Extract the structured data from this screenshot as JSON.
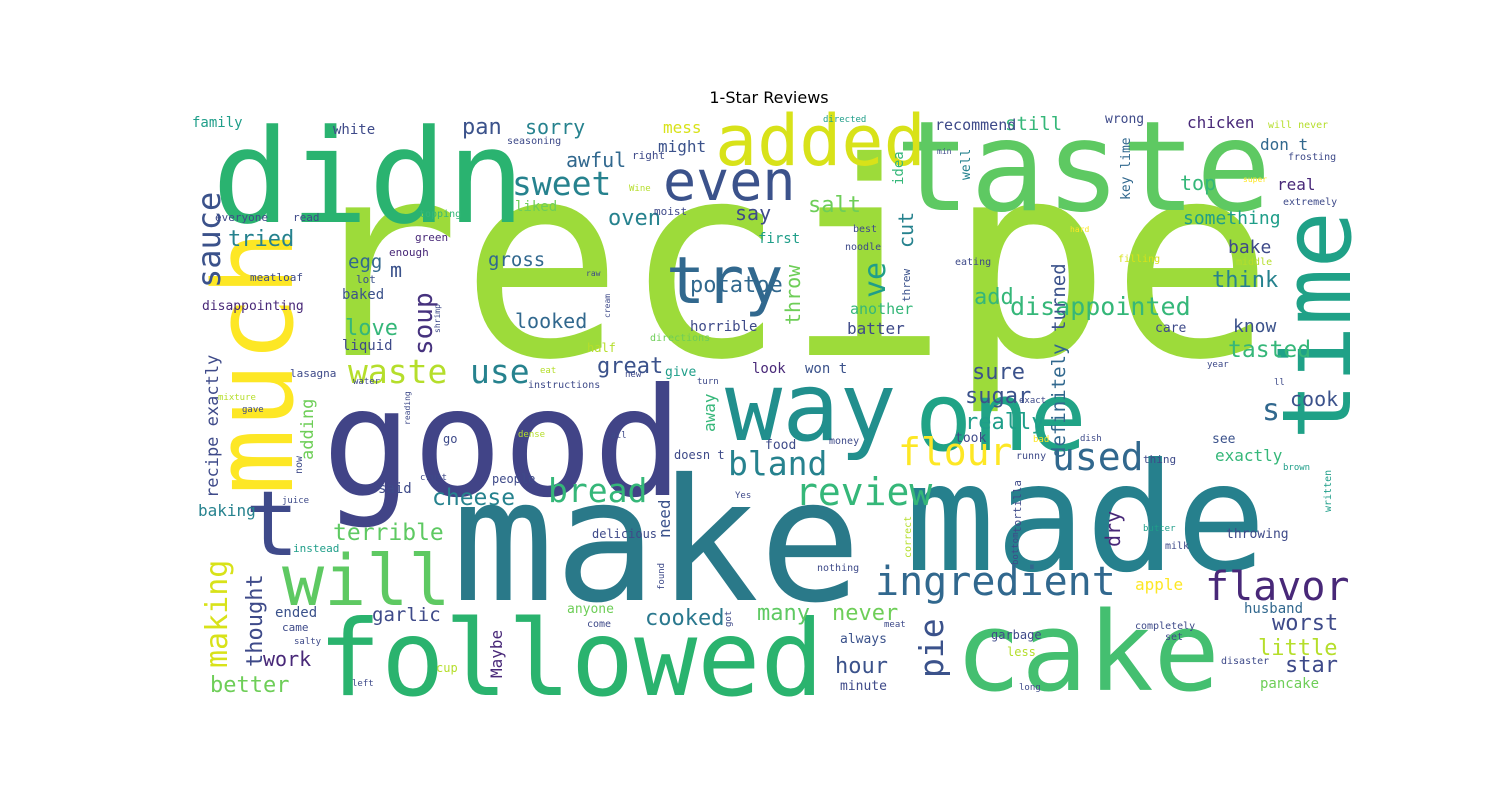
{
  "chart_data": {
    "type": "wordcloud",
    "title": "1-Star Reviews",
    "colormap": "viridis",
    "background": "#ffffff",
    "words": [
      {
        "text": "recipe",
        "weight": 1.0,
        "color": "#9ddb3a"
      },
      {
        "text": "make",
        "weight": 0.62,
        "color": "#2a7989"
      },
      {
        "text": "made",
        "weight": 0.55,
        "color": "#26808d"
      },
      {
        "text": "good",
        "weight": 0.52,
        "color": "#414487"
      },
      {
        "text": "didn",
        "weight": 0.5,
        "color": "#2ab370"
      },
      {
        "text": "taste",
        "weight": 0.48,
        "color": "#5ec962"
      },
      {
        "text": "cake",
        "weight": 0.42,
        "color": "#44bf70"
      },
      {
        "text": "followed",
        "weight": 0.4,
        "color": "#2ab36e"
      },
      {
        "text": "much",
        "weight": 0.38,
        "color": "#fde725"
      },
      {
        "text": "one",
        "weight": 0.37,
        "color": "#20a386"
      },
      {
        "text": "way",
        "weight": 0.35,
        "color": "#218f8d"
      },
      {
        "text": "time",
        "weight": 0.34,
        "color": "#1fa187"
      },
      {
        "text": "t",
        "weight": 0.3,
        "color": "#3f4a8a"
      },
      {
        "text": "will",
        "weight": 0.25,
        "color": "#5ec962"
      },
      {
        "text": "added",
        "weight": 0.24,
        "color": "#d8e219"
      },
      {
        "text": "even",
        "weight": 0.22,
        "color": "#3b528b"
      },
      {
        "text": "try",
        "weight": 0.2,
        "color": "#31688e"
      },
      {
        "text": "ingredient",
        "weight": 0.15,
        "color": "#31688e"
      },
      {
        "text": "flavor",
        "weight": 0.14,
        "color": "#482878"
      },
      {
        "text": "review",
        "weight": 0.13,
        "color": "#35b779"
      },
      {
        "text": "flour",
        "weight": 0.13,
        "color": "#fde725"
      },
      {
        "text": "used",
        "weight": 0.12,
        "color": "#31688e"
      },
      {
        "text": "bland",
        "weight": 0.12,
        "color": "#26828e"
      },
      {
        "text": "bread",
        "weight": 0.12,
        "color": "#35b779"
      },
      {
        "text": "sweet",
        "weight": 0.12,
        "color": "#26828e"
      },
      {
        "text": "waste",
        "weight": 0.12,
        "color": "#b5de2b"
      },
      {
        "text": "use",
        "weight": 0.11,
        "color": "#26828e"
      },
      {
        "text": "sauce",
        "weight": 0.11,
        "color": "#3b528b"
      },
      {
        "text": "making",
        "weight": 0.1,
        "color": "#d8e219"
      },
      {
        "text": "pie",
        "weight": 0.1,
        "color": "#3b528b"
      },
      {
        "text": "s",
        "weight": 0.1,
        "color": "#31688e"
      },
      {
        "text": "disappointed",
        "weight": 0.09,
        "color": "#35b779"
      },
      {
        "text": "ve",
        "weight": 0.09,
        "color": "#1f9e89"
      },
      {
        "text": "cheese",
        "weight": 0.08,
        "color": "#26828e"
      },
      {
        "text": "tasted",
        "weight": 0.08,
        "color": "#35b779"
      },
      {
        "text": "soup",
        "weight": 0.08,
        "color": "#46327e"
      },
      {
        "text": "potatoe",
        "weight": 0.08,
        "color": "#31688e"
      },
      {
        "text": "cooked",
        "weight": 0.08,
        "color": "#2a788e"
      },
      {
        "text": "worst",
        "weight": 0.07,
        "color": "#3e4a89"
      },
      {
        "text": "terrible",
        "weight": 0.07,
        "color": "#5ec962"
      },
      {
        "text": "salt",
        "weight": 0.07,
        "color": "#6ece58"
      },
      {
        "text": "little",
        "weight": 0.07,
        "color": "#b5de2b"
      },
      {
        "text": "love",
        "weight": 0.07,
        "color": "#35b779"
      },
      {
        "text": "great",
        "weight": 0.07,
        "color": "#3b528b"
      },
      {
        "text": "many",
        "weight": 0.07,
        "color": "#5ec962"
      },
      {
        "text": "never",
        "weight": 0.07,
        "color": "#6ece58"
      },
      {
        "text": "star",
        "weight": 0.07,
        "color": "#3e4a89"
      },
      {
        "text": "hour",
        "weight": 0.07,
        "color": "#3b528b"
      },
      {
        "text": "tried",
        "weight": 0.07,
        "color": "#26828e"
      },
      {
        "text": "sure",
        "weight": 0.07,
        "color": "#3b528b"
      },
      {
        "text": "better",
        "weight": 0.07,
        "color": "#6ece58"
      },
      {
        "text": "add",
        "weight": 0.07,
        "color": "#35b779"
      },
      {
        "text": "think",
        "weight": 0.07,
        "color": "#26828e"
      },
      {
        "text": "really",
        "weight": 0.07,
        "color": "#1f9e89"
      },
      {
        "text": "sugar",
        "weight": 0.07,
        "color": "#3b528b"
      },
      {
        "text": "thought",
        "weight": 0.07,
        "color": "#3e4a89"
      },
      {
        "text": "oven",
        "weight": 0.07,
        "color": "#26828e"
      },
      {
        "text": "definitely",
        "weight": 0.06,
        "color": "#31688e"
      },
      {
        "text": "turned",
        "weight": 0.06,
        "color": "#3b528b"
      },
      {
        "text": "looked",
        "weight": 0.06,
        "color": "#31688e"
      },
      {
        "text": "dry",
        "weight": 0.06,
        "color": "#482878"
      },
      {
        "text": "pan",
        "weight": 0.06,
        "color": "#3b528b"
      },
      {
        "text": "awful",
        "weight": 0.06,
        "color": "#31688e"
      },
      {
        "text": "sorry",
        "weight": 0.06,
        "color": "#26828e"
      },
      {
        "text": "say",
        "weight": 0.06,
        "color": "#3e4a89"
      },
      {
        "text": "cut",
        "weight": 0.06,
        "color": "#26828e"
      },
      {
        "text": "throw",
        "weight": 0.06,
        "color": "#6ece58"
      },
      {
        "text": "cook",
        "weight": 0.06,
        "color": "#3b528b"
      },
      {
        "text": "top",
        "weight": 0.06,
        "color": "#35b779"
      },
      {
        "text": "work",
        "weight": 0.06,
        "color": "#482878"
      },
      {
        "text": "garlic",
        "weight": 0.06,
        "color": "#3e4a89"
      },
      {
        "text": "gross",
        "weight": 0.06,
        "color": "#31688e"
      },
      {
        "text": "egg",
        "weight": 0.06,
        "color": "#31688e"
      },
      {
        "text": "m",
        "weight": 0.06,
        "color": "#3b528b"
      },
      {
        "text": "something",
        "weight": 0.06,
        "color": "#1f9e89"
      },
      {
        "text": "bake",
        "weight": 0.06,
        "color": "#3e4a89"
      },
      {
        "text": "know",
        "weight": 0.06,
        "color": "#3b528b"
      },
      {
        "text": "still",
        "weight": 0.06,
        "color": "#35b779"
      },
      {
        "text": "real",
        "weight": 0.05,
        "color": "#482878"
      },
      {
        "text": "don t",
        "weight": 0.05,
        "color": "#31688e"
      },
      {
        "text": "mess",
        "weight": 0.05,
        "color": "#d8e219"
      },
      {
        "text": "might",
        "weight": 0.05,
        "color": "#3b528b"
      },
      {
        "text": "recommend",
        "weight": 0.05,
        "color": "#3e4a89"
      },
      {
        "text": "chicken",
        "weight": 0.05,
        "color": "#482878"
      },
      {
        "text": "adding",
        "weight": 0.05,
        "color": "#6ece58"
      },
      {
        "text": "recipe exactly",
        "weight": 0.05,
        "color": "#3e4a89"
      },
      {
        "text": "apple",
        "weight": 0.05,
        "color": "#fde725"
      },
      {
        "text": "exactly",
        "weight": 0.05,
        "color": "#35b779"
      },
      {
        "text": "another",
        "weight": 0.05,
        "color": "#35b779"
      },
      {
        "text": "batter",
        "weight": 0.05,
        "color": "#3e4a89"
      },
      {
        "text": "need",
        "weight": 0.05,
        "color": "#3b528b"
      },
      {
        "text": "away",
        "weight": 0.05,
        "color": "#35b779"
      },
      {
        "text": "Maybe",
        "weight": 0.05,
        "color": "#482878"
      },
      {
        "text": "baking",
        "weight": 0.05,
        "color": "#26828e"
      },
      {
        "text": "ended",
        "weight": 0.04,
        "color": "#3b528b"
      },
      {
        "text": "husband",
        "weight": 0.04,
        "color": "#31688e"
      },
      {
        "text": "pancake",
        "weight": 0.04,
        "color": "#6ece58"
      },
      {
        "text": "said",
        "weight": 0.04,
        "color": "#3e4a89"
      },
      {
        "text": "family",
        "weight": 0.04,
        "color": "#1f9e89"
      },
      {
        "text": "white",
        "weight": 0.04,
        "color": "#3e4a89"
      },
      {
        "text": "liked",
        "weight": 0.04,
        "color": "#6ece58"
      },
      {
        "text": "first",
        "weight": 0.04,
        "color": "#1f9e89"
      },
      {
        "text": "baked",
        "weight": 0.04,
        "color": "#3b528b"
      },
      {
        "text": "liquid",
        "weight": 0.04,
        "color": "#3e4a89"
      },
      {
        "text": "disappointing",
        "weight": 0.04,
        "color": "#482878"
      },
      {
        "text": "idea",
        "weight": 0.04,
        "color": "#35b779"
      },
      {
        "text": "well",
        "weight": 0.04,
        "color": "#26828e"
      },
      {
        "text": "wrong",
        "weight": 0.04,
        "color": "#3e4a89"
      },
      {
        "text": "key lime",
        "weight": 0.04,
        "color": "#31688e"
      },
      {
        "text": "care",
        "weight": 0.04,
        "color": "#3e4a89"
      },
      {
        "text": "horrible",
        "weight": 0.04,
        "color": "#3e4a89"
      },
      {
        "text": "look",
        "weight": 0.04,
        "color": "#482878"
      },
      {
        "text": "won t",
        "weight": 0.04,
        "color": "#3b528b"
      },
      {
        "text": "give",
        "weight": 0.04,
        "color": "#1f9e89"
      },
      {
        "text": "took",
        "weight": 0.04,
        "color": "#3e4a89"
      },
      {
        "text": "food",
        "weight": 0.04,
        "color": "#3e4a89"
      },
      {
        "text": "see",
        "weight": 0.04,
        "color": "#3b528b"
      },
      {
        "text": "throwing",
        "weight": 0.04,
        "color": "#3e4a89"
      },
      {
        "text": "always",
        "weight": 0.04,
        "color": "#3b528b"
      },
      {
        "text": "minute",
        "weight": 0.04,
        "color": "#3e4a89"
      },
      {
        "text": "anyone",
        "weight": 0.04,
        "color": "#6ece58"
      },
      {
        "text": "people",
        "weight": 0.04,
        "color": "#3e4a89"
      },
      {
        "text": "delicious",
        "weight": 0.04,
        "color": "#3e4a89"
      },
      {
        "text": "doesn t",
        "weight": 0.04,
        "color": "#3e4a89"
      },
      {
        "text": "half",
        "weight": 0.04,
        "color": "#b5de2b"
      },
      {
        "text": "garbage",
        "weight": 0.04,
        "color": "#3e4a89"
      },
      {
        "text": "less",
        "weight": 0.03,
        "color": "#b5de2b"
      },
      {
        "text": "everyone",
        "weight": 0.03,
        "color": "#3e4a89"
      },
      {
        "text": "read",
        "weight": 0.03,
        "color": "#3e4a89"
      },
      {
        "text": "green",
        "weight": 0.03,
        "color": "#482878"
      },
      {
        "text": "enough",
        "weight": 0.03,
        "color": "#482878"
      },
      {
        "text": "meatloaf",
        "weight": 0.03,
        "color": "#3e4a89"
      },
      {
        "text": "lot",
        "weight": 0.03,
        "color": "#3b528b"
      },
      {
        "text": "topping",
        "weight": 0.03,
        "color": "#35b779"
      },
      {
        "text": "moist",
        "weight": 0.03,
        "color": "#3e4a89"
      },
      {
        "text": "right",
        "weight": 0.03,
        "color": "#3e4a89"
      },
      {
        "text": "seasoning",
        "weight": 0.03,
        "color": "#3e4a89"
      },
      {
        "text": "noodle",
        "weight": 0.03,
        "color": "#3e4a89"
      },
      {
        "text": "best",
        "weight": 0.03,
        "color": "#3e4a89"
      },
      {
        "text": "threw",
        "weight": 0.03,
        "color": "#3b528b"
      },
      {
        "text": "eating",
        "weight": 0.03,
        "color": "#3e4a89"
      },
      {
        "text": "filling",
        "weight": 0.03,
        "color": "#d8e219"
      },
      {
        "text": "middle",
        "weight": 0.03,
        "color": "#b5de2b"
      },
      {
        "text": "will never",
        "weight": 0.03,
        "color": "#b5de2b"
      },
      {
        "text": "frosting",
        "weight": 0.03,
        "color": "#3e4a89"
      },
      {
        "text": "extremely",
        "weight": 0.03,
        "color": "#3e4a89"
      },
      {
        "text": "directions",
        "weight": 0.03,
        "color": "#6ece58"
      },
      {
        "text": "instructions",
        "weight": 0.03,
        "color": "#3e4a89"
      },
      {
        "text": "lasagna",
        "weight": 0.03,
        "color": "#3e4a89"
      },
      {
        "text": "mixture",
        "weight": 0.03,
        "color": "#b5de2b"
      },
      {
        "text": "gave",
        "weight": 0.03,
        "color": "#3e4a89"
      },
      {
        "text": "water",
        "weight": 0.03,
        "color": "#3e4a89"
      },
      {
        "text": "juice",
        "weight": 0.03,
        "color": "#3e4a89"
      },
      {
        "text": "instead",
        "weight": 0.03,
        "color": "#1f9e89"
      },
      {
        "text": "salty",
        "weight": 0.03,
        "color": "#3e4a89"
      },
      {
        "text": "left",
        "weight": 0.03,
        "color": "#3e4a89"
      },
      {
        "text": "came",
        "weight": 0.03,
        "color": "#3e4a89"
      },
      {
        "text": "crust",
        "weight": 0.03,
        "color": "#3e4a89"
      },
      {
        "text": "now",
        "weight": 0.03,
        "color": "#3e4a89"
      },
      {
        "text": "go",
        "weight": 0.03,
        "color": "#3e4a89"
      },
      {
        "text": "dense",
        "weight": 0.03,
        "color": "#b5de2b"
      },
      {
        "text": "call",
        "weight": 0.03,
        "color": "#3e4a89"
      },
      {
        "text": "cup",
        "weight": 0.03,
        "color": "#b5de2b"
      },
      {
        "text": "found",
        "weight": 0.03,
        "color": "#3e4a89"
      },
      {
        "text": "nothing",
        "weight": 0.03,
        "color": "#3e4a89"
      },
      {
        "text": "got",
        "weight": 0.03,
        "color": "#3e4a89"
      },
      {
        "text": "come",
        "weight": 0.03,
        "color": "#3e4a89"
      },
      {
        "text": "meat",
        "weight": 0.03,
        "color": "#3e4a89"
      },
      {
        "text": "completely",
        "weight": 0.03,
        "color": "#3e4a89"
      },
      {
        "text": "set",
        "weight": 0.03,
        "color": "#3e4a89"
      },
      {
        "text": "disaster",
        "weight": 0.03,
        "color": "#3e4a89"
      },
      {
        "text": "long",
        "weight": 0.03,
        "color": "#3e4a89"
      },
      {
        "text": "bottom",
        "weight": 0.03,
        "color": "#3e4a89"
      },
      {
        "text": "tortilla",
        "weight": 0.03,
        "color": "#3e4a89"
      },
      {
        "text": "correct",
        "weight": 0.03,
        "color": "#b5de2b"
      },
      {
        "text": "Yes",
        "weight": 0.03,
        "color": "#3e4a89"
      },
      {
        "text": "milk",
        "weight": 0.03,
        "color": "#3e4a89"
      },
      {
        "text": "butter",
        "weight": 0.03,
        "color": "#1f9e89"
      },
      {
        "text": "written",
        "weight": 0.03,
        "color": "#1f9e89"
      },
      {
        "text": "brown",
        "weight": 0.03,
        "color": "#1f9e89"
      },
      {
        "text": "thing",
        "weight": 0.03,
        "color": "#3e4a89"
      },
      {
        "text": "dish",
        "weight": 0.03,
        "color": "#3e4a89"
      },
      {
        "text": "runny",
        "weight": 0.03,
        "color": "#3e4a89"
      },
      {
        "text": "bad",
        "weight": 0.03,
        "color": "#fde725"
      },
      {
        "text": "money",
        "weight": 0.03,
        "color": "#3e4a89"
      },
      {
        "text": "turn",
        "weight": 0.03,
        "color": "#3e4a89"
      },
      {
        "text": "exact",
        "weight": 0.03,
        "color": "#3e4a89"
      },
      {
        "text": "year",
        "weight": 0.03,
        "color": "#3e4a89"
      },
      {
        "text": "ll",
        "weight": 0.03,
        "color": "#3e4a89"
      },
      {
        "text": "new",
        "weight": 0.03,
        "color": "#3e4a89"
      },
      {
        "text": "eat",
        "weight": 0.03,
        "color": "#b5de2b"
      },
      {
        "text": "reading",
        "weight": 0.03,
        "color": "#3e4a89"
      },
      {
        "text": "shrimp",
        "weight": 0.03,
        "color": "#3e4a89"
      },
      {
        "text": "raw",
        "weight": 0.03,
        "color": "#3e4a89"
      },
      {
        "text": "cream",
        "weight": 0.03,
        "color": "#3e4a89"
      },
      {
        "text": "Wine",
        "weight": 0.03,
        "color": "#b5de2b"
      },
      {
        "text": "directed",
        "weight": 0.03,
        "color": "#1f9e89"
      },
      {
        "text": "min",
        "weight": 0.03,
        "color": "#3e4a89"
      },
      {
        "text": "super",
        "weight": 0.03,
        "color": "#fde725"
      },
      {
        "text": "hard",
        "weight": 0.03,
        "color": "#fde725"
      }
    ]
  }
}
